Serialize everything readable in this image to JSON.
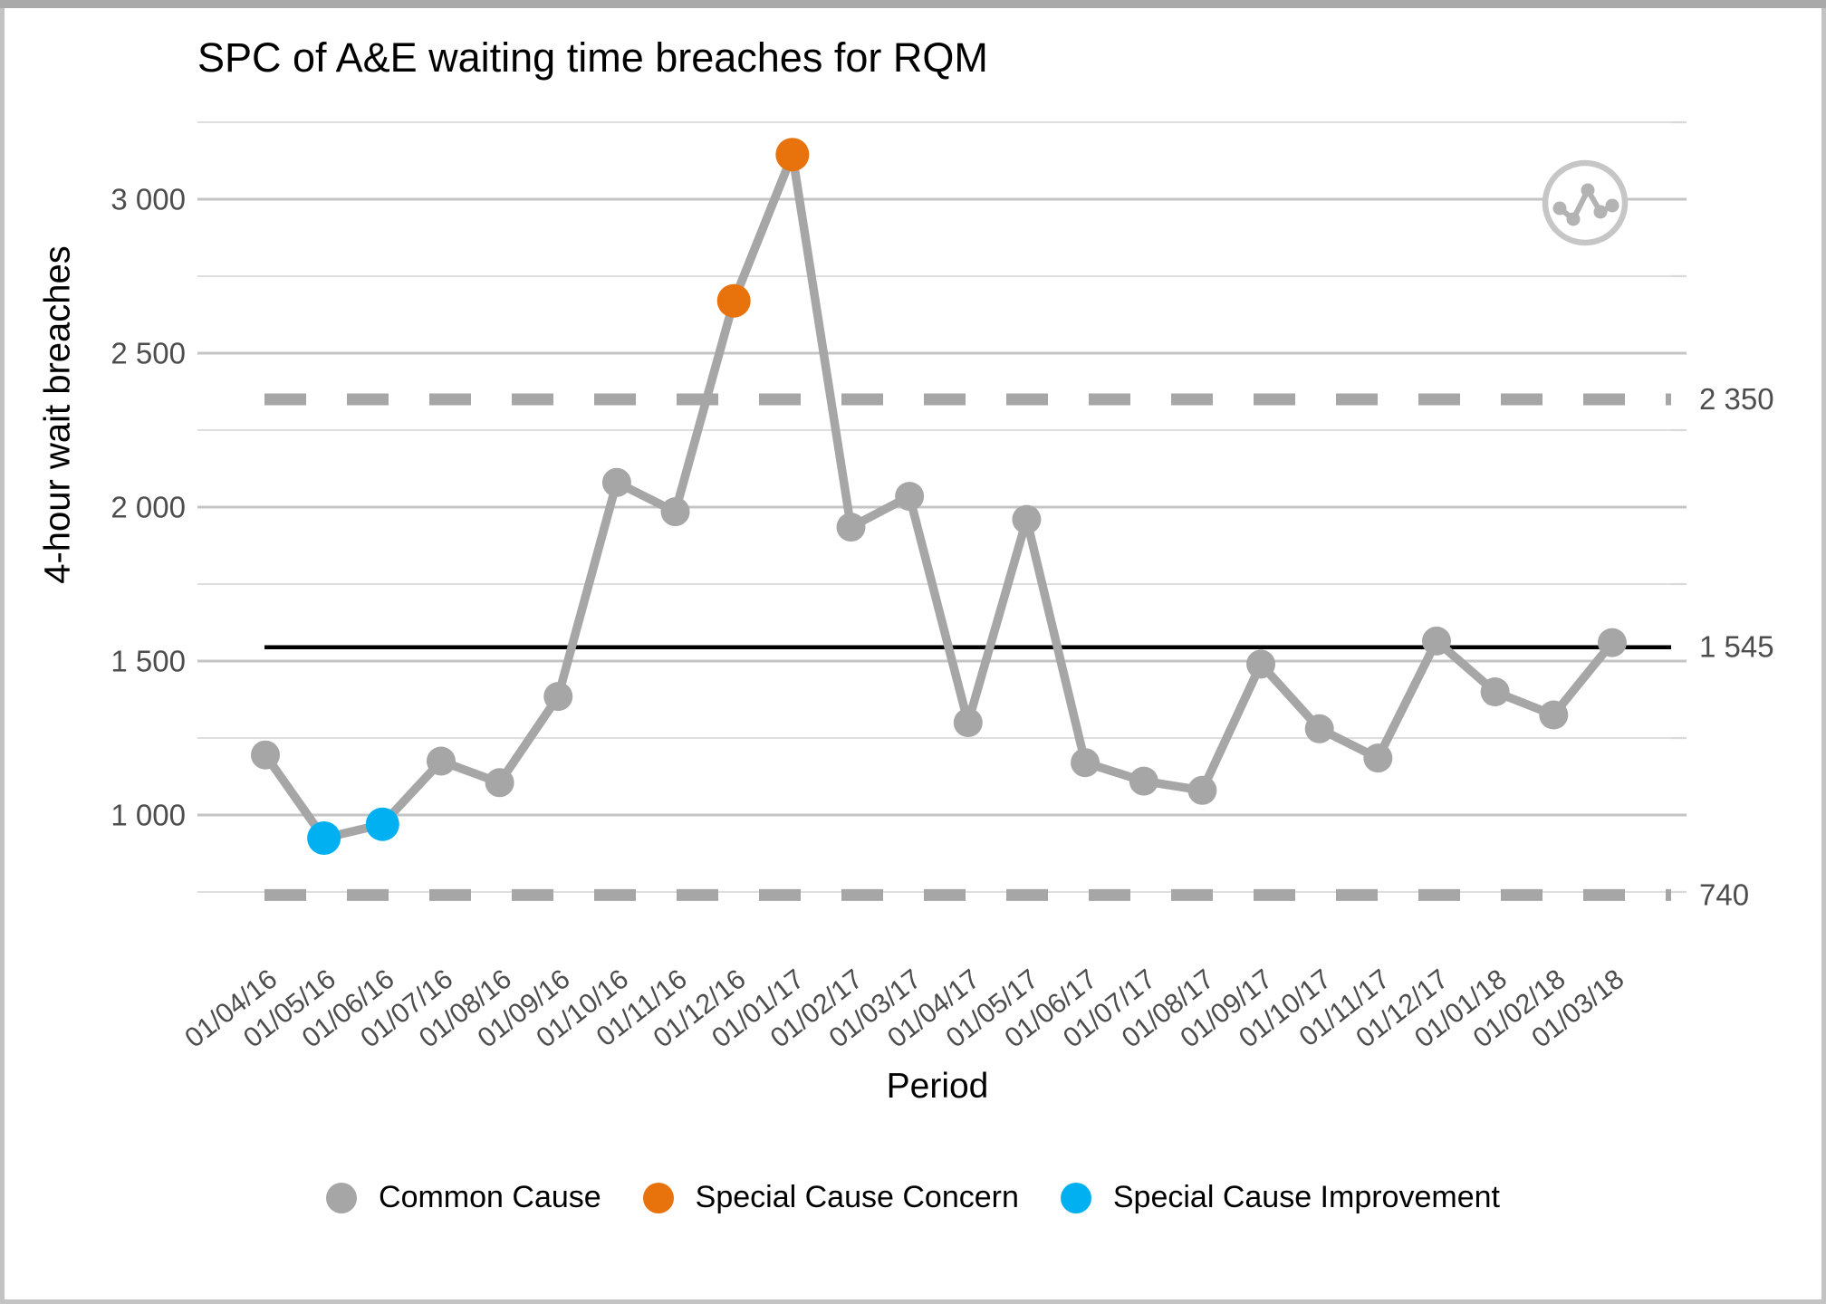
{
  "chart_data": {
    "type": "line",
    "title": "SPC of A&E waiting time breaches for RQM",
    "xlabel": "Period",
    "ylabel": "4-hour wait breaches",
    "categories": [
      "01/04/16",
      "01/05/16",
      "01/06/16",
      "01/07/16",
      "01/08/16",
      "01/09/16",
      "01/10/16",
      "01/11/16",
      "01/12/16",
      "01/01/17",
      "01/02/17",
      "01/03/17",
      "01/04/17",
      "01/05/17",
      "01/06/17",
      "01/07/17",
      "01/08/17",
      "01/09/17",
      "01/10/17",
      "01/11/17",
      "01/12/17",
      "01/01/18",
      "01/02/18",
      "01/03/18"
    ],
    "series": [
      {
        "name": "4-hour wait breaches",
        "values": [
          1195,
          925,
          970,
          1175,
          1105,
          1385,
          2080,
          1985,
          2670,
          3145,
          1935,
          2035,
          1300,
          1960,
          1170,
          1110,
          1080,
          1490,
          1280,
          1185,
          1565,
          1400,
          1325,
          1560
        ],
        "point_types": [
          "common",
          "improvement",
          "improvement",
          "common",
          "common",
          "common",
          "common",
          "common",
          "concern",
          "concern",
          "common",
          "common",
          "common",
          "common",
          "common",
          "common",
          "common",
          "common",
          "common",
          "common",
          "common",
          "common",
          "common",
          "common"
        ]
      }
    ],
    "limits": {
      "mean": {
        "value": 1545,
        "label": "1 545",
        "style": "solid-black"
      },
      "upper": {
        "value": 2350,
        "label": "2 350",
        "style": "dashed-grey"
      },
      "lower": {
        "value": 740,
        "label": "740",
        "style": "dashed-grey"
      }
    },
    "yticks": [
      {
        "value": 1000,
        "label": "1 000"
      },
      {
        "value": 1500,
        "label": "1 500"
      },
      {
        "value": 2000,
        "label": "2 000"
      },
      {
        "value": 2500,
        "label": "2 500"
      },
      {
        "value": 3000,
        "label": "3 000"
      }
    ],
    "minor_gridlines": [
      750,
      1250,
      1750,
      2250,
      2750,
      3250
    ],
    "ylim": [
      650,
      3300
    ],
    "grid": true,
    "legend_position": "bottom",
    "legend": [
      {
        "label": "Common Cause",
        "type": "common",
        "color": "#a6a6a6"
      },
      {
        "label": "Special Cause Concern",
        "type": "concern",
        "color": "#e8720c"
      },
      {
        "label": "Special Cause Improvement",
        "type": "improvement",
        "color": "#00b0f0"
      }
    ],
    "colors": {
      "common": "#a6a6a6",
      "concern": "#e8720c",
      "improvement": "#00b0f0",
      "line": "#a6a6a6",
      "mean_line": "#000000",
      "limit_line": "#a6a6a6",
      "grid_major": "#c4c4c4",
      "grid_minor": "#dadada",
      "tick_text": "#4d4d4d"
    },
    "corner_icon": "sparkline-circle-icon"
  }
}
